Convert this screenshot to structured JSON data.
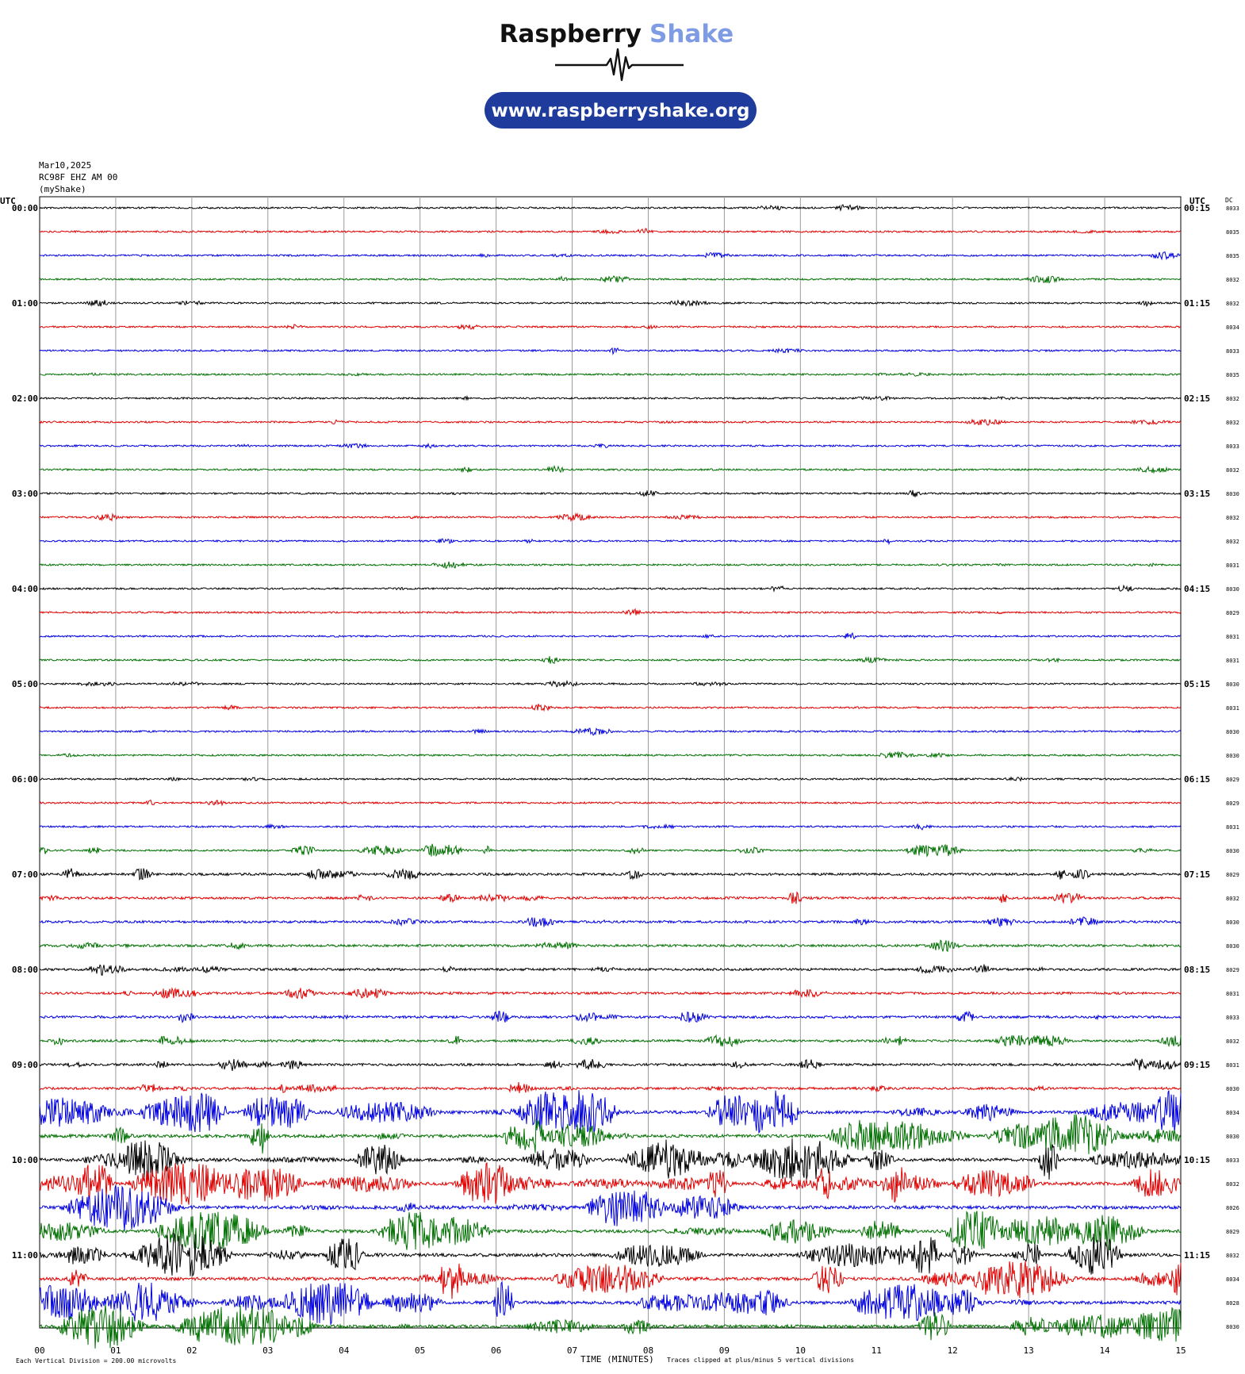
{
  "logo": {
    "word1": "Raspberry",
    "word2": "Shake",
    "url": "www.raspberryshake.org",
    "colors": {
      "dark": "#111111",
      "accent": "#7f9be3",
      "pill": "#1f3c9c"
    }
  },
  "header": {
    "date": "Mar10,2025",
    "station": "RC98F EHZ AM 00",
    "network": "(myShake)"
  },
  "chart_data": {
    "type": "line",
    "subtype": "helicorder",
    "xlabel": "TIME (MINUTES)",
    "x_ticks": [
      "00",
      "01",
      "02",
      "03",
      "04",
      "05",
      "06",
      "07",
      "08",
      "09",
      "10",
      "11",
      "12",
      "13",
      "14",
      "15"
    ],
    "xlim": [
      0,
      15
    ],
    "left_axis_title": "UTC",
    "right_axis_title": "UTC",
    "dc_title": "DC",
    "left_labels": [
      "00:00",
      "01:00",
      "02:00",
      "03:00",
      "04:00",
      "05:00",
      "06:00",
      "07:00",
      "08:00",
      "09:00",
      "10:00",
      "11:00"
    ],
    "right_labels": [
      "00:15",
      "01:15",
      "02:15",
      "03:15",
      "04:15",
      "05:15",
      "06:15",
      "07:15",
      "08:15",
      "09:15",
      "10:15",
      "11:15"
    ],
    "dc_values": [
      "8033",
      "8035",
      "8035",
      "8032",
      "8032",
      "8034",
      "8033",
      "8035",
      "8032",
      "8032",
      "8033",
      "8032",
      "8030",
      "8032",
      "8032",
      "8031",
      "8030",
      "8029",
      "8031",
      "8031",
      "8030",
      "8031",
      "8030",
      "8030",
      "8029",
      "8029",
      "8031",
      "8030",
      "8029",
      "8032",
      "8030",
      "8030",
      "8029",
      "8031",
      "8033",
      "8032",
      "8031",
      "8030",
      "8034",
      "8030",
      "8033",
      "8032",
      "8026",
      "8029",
      "8032",
      "8034",
      "8028",
      "8030"
    ],
    "trace_colors": [
      "#000000",
      "#e00000",
      "#0000e0",
      "#007000"
    ],
    "minutes_per_line": 15,
    "footer_left": "Each Vertical Division = 200.00 microvolts",
    "footer_right": "Traces clipped at plus/minus 5 vertical divisions",
    "grid": true
  }
}
